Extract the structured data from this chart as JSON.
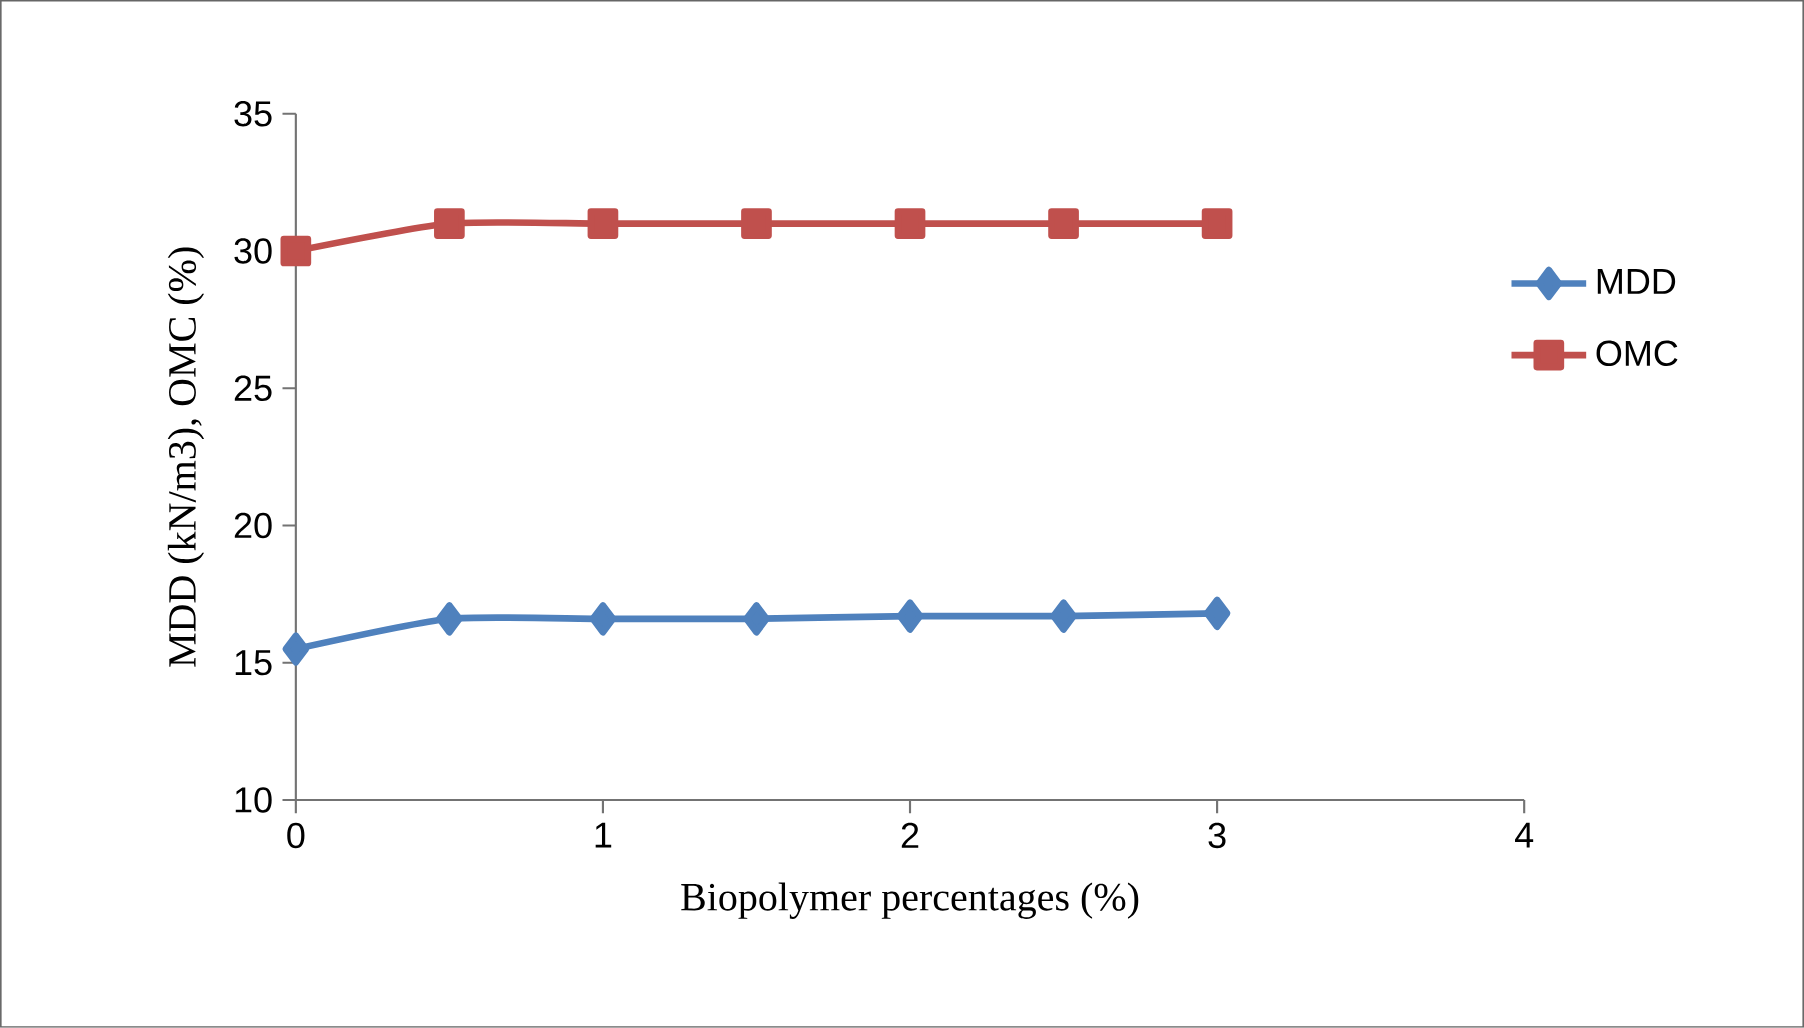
{
  "chart_data": {
    "type": "line",
    "xlabel": "Biopolymer percentages (%)",
    "ylabel": "MDD (kN/m3), OMC (%)",
    "x": [
      0,
      0.5,
      1,
      1.5,
      2,
      2.5,
      3
    ],
    "series": [
      {
        "name": "MDD",
        "color": "#4f81bd",
        "marker": "diamond",
        "values": [
          15.5,
          16.6,
          16.6,
          16.6,
          16.7,
          16.7,
          16.8
        ]
      },
      {
        "name": "OMC",
        "color": "#c0504d",
        "marker": "square",
        "values": [
          30,
          31,
          31,
          31,
          31,
          31,
          31
        ]
      }
    ],
    "xlim": [
      0,
      4
    ],
    "xticks": [
      0,
      1,
      2,
      3,
      4
    ],
    "ylim": [
      10,
      35
    ],
    "yticks": [
      10,
      15,
      20,
      25,
      30,
      35
    ],
    "grid": false,
    "legend": "right",
    "line_style": "solid"
  }
}
